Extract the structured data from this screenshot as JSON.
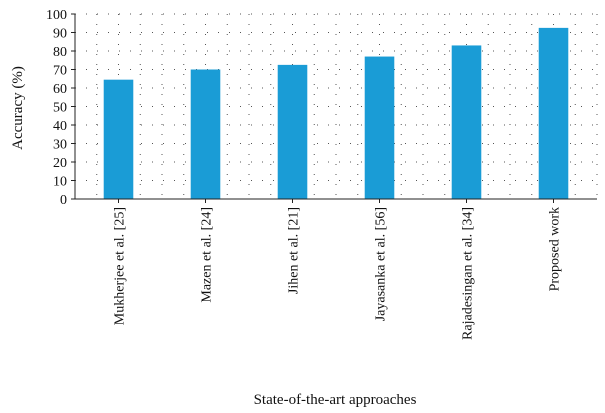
{
  "chart_data": {
    "type": "bar",
    "title": "",
    "xlabel": "State-of-the-art approaches",
    "ylabel": "Accuracy (%)",
    "ylim": [
      0,
      100
    ],
    "yticks": [
      0,
      10,
      20,
      30,
      40,
      50,
      60,
      70,
      80,
      90,
      100
    ],
    "grid": true,
    "categories": [
      "Mukherjee et al. [25]",
      "Mazen et al. [24]",
      "Jihen et al. [21]",
      "Jayasanka et al. [56]",
      "Rajadesingan et al. [34]",
      "Proposed work"
    ],
    "values": [
      64.5,
      70,
      72.5,
      77,
      83,
      92.5
    ],
    "bar_color": "#1a9cd6"
  }
}
